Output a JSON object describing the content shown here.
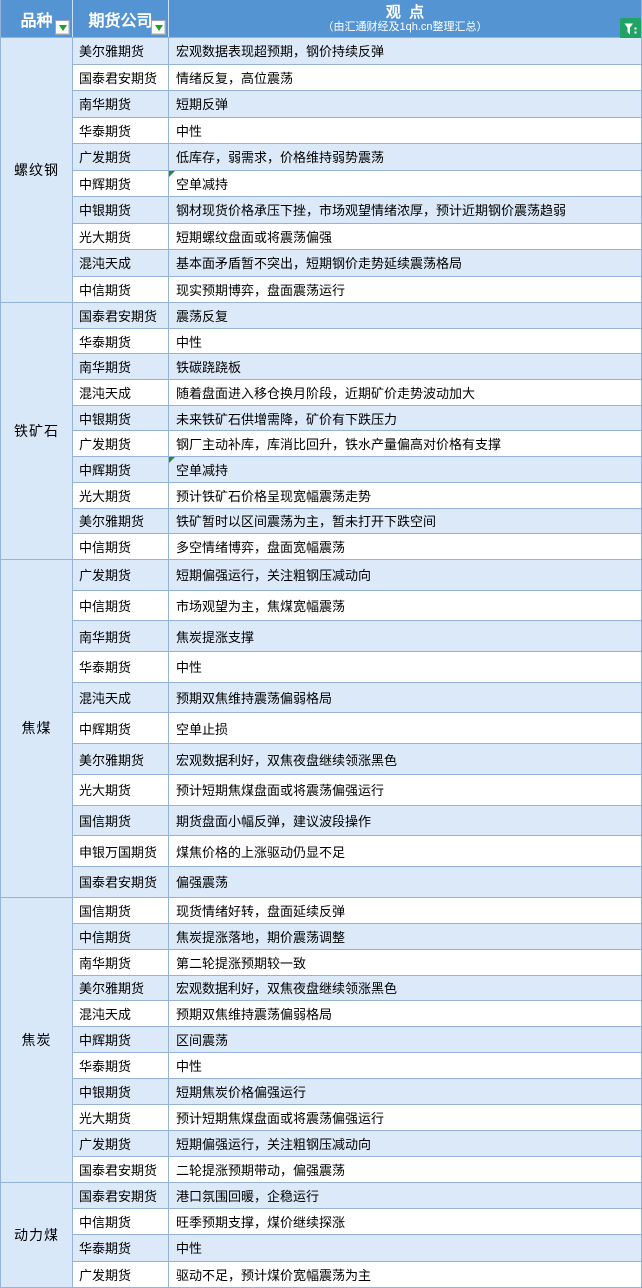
{
  "header": {
    "variety_label": "品种",
    "company_label": "期货公司",
    "view_title": "观  点",
    "view_subtitle": "（由汇通财经及1qh.cn整理汇总）"
  },
  "icons": {
    "variety_filter": "dropdown-arrow",
    "company_filter": "dropdown-arrow",
    "sheet_filter": "filter-funnel",
    "comment_marker": "corner-triangle"
  },
  "colors": {
    "header_bg": "#5494D2",
    "header_text": "#FFFFFF",
    "stripe_bg": "#DCE9F8",
    "variety_col_bg": "#D9E8F8",
    "grid_border": "#95B3D7",
    "dropdown_arrow_green": "#1FA21F",
    "filter_badge_green": "#21A366",
    "comment_marker_green": "#1E8E3E"
  },
  "sections": [
    {
      "variety": "螺纹钢",
      "rows": [
        {
          "company": "美尔雅期货",
          "view": "宏观数据表现超预期，钢价持续反弹"
        },
        {
          "company": "国泰君安期货",
          "view": "情绪反复，高位震荡"
        },
        {
          "company": "南华期货",
          "view": "短期反弹"
        },
        {
          "company": "华泰期货",
          "view": "中性"
        },
        {
          "company": "广发期货",
          "view": "低库存，弱需求，价格维持弱势震荡"
        },
        {
          "company": "中辉期货",
          "view": "空单减持",
          "comment": true
        },
        {
          "company": "中银期货",
          "view": "钢材现货价格承压下挫，市场观望情绪浓厚，预计近期钢价震荡趋弱"
        },
        {
          "company": "光大期货",
          "view": "短期螺纹盘面或将震荡偏强"
        },
        {
          "company": "混沌天成",
          "view": "基本面矛盾暂不突出，短期钢价走势延续震荡格局"
        },
        {
          "company": "中信期货",
          "view": "现实预期博弈，盘面震荡运行"
        }
      ]
    },
    {
      "variety": "铁矿石",
      "rows": [
        {
          "company": "国泰君安期货",
          "view": "震荡反复"
        },
        {
          "company": "华泰期货",
          "view": "中性"
        },
        {
          "company": "南华期货",
          "view": "铁碳跷跷板"
        },
        {
          "company": "混沌天成",
          "view": "随着盘面进入移仓换月阶段，近期矿价走势波动加大"
        },
        {
          "company": "中银期货",
          "view": "未来铁矿石供增需降，矿价有下跌压力"
        },
        {
          "company": "广发期货",
          "view": "钢厂主动补库，库消比回升，铁水产量偏高对价格有支撑"
        },
        {
          "company": "中辉期货",
          "view": "空单减持",
          "comment": true
        },
        {
          "company": "光大期货",
          "view": "预计铁矿石价格呈现宽幅震荡走势"
        },
        {
          "company": "美尔雅期货",
          "view": "铁矿暂时以区间震荡为主，暂未打开下跌空间"
        },
        {
          "company": "中信期货",
          "view": "多空情绪博弈，盘面宽幅震荡"
        }
      ]
    },
    {
      "variety": "焦煤",
      "rows": [
        {
          "company": "广发期货",
          "view": "短期偏强运行，关注粗钢压减动向"
        },
        {
          "company": "中信期货",
          "view": "市场观望为主，焦煤宽幅震荡"
        },
        {
          "company": "南华期货",
          "view": "焦炭提涨支撑"
        },
        {
          "company": "华泰期货",
          "view": "中性"
        },
        {
          "company": "混沌天成",
          "view": "预期双焦维持震荡偏弱格局"
        },
        {
          "company": "中辉期货",
          "view": "空单止损"
        },
        {
          "company": "美尔雅期货",
          "view": "宏观数据利好，双焦夜盘继续领涨黑色"
        },
        {
          "company": "光大期货",
          "view": "预计短期焦煤盘面或将震荡偏强运行"
        },
        {
          "company": "国信期货",
          "view": "期货盘面小幅反弹，建议波段操作"
        },
        {
          "company": "申银万国期货",
          "view": "煤焦价格的上涨驱动仍显不足"
        },
        {
          "company": "国泰君安期货",
          "view": "偏强震荡"
        }
      ]
    },
    {
      "variety": "焦炭",
      "rows": [
        {
          "company": "国信期货",
          "view": "现货情绪好转，盘面延续反弹"
        },
        {
          "company": "中信期货",
          "view": "焦炭提涨落地，期价震荡调整"
        },
        {
          "company": "南华期货",
          "view": "第二轮提涨预期较一致"
        },
        {
          "company": "美尔雅期货",
          "view": "宏观数据利好，双焦夜盘继续领涨黑色"
        },
        {
          "company": "混沌天成",
          "view": "预期双焦维持震荡偏弱格局"
        },
        {
          "company": "中辉期货",
          "view": "区间震荡"
        },
        {
          "company": "华泰期货",
          "view": "中性"
        },
        {
          "company": "中银期货",
          "view": "短期焦炭价格偏强运行"
        },
        {
          "company": "光大期货",
          "view": "预计短期焦煤盘面或将震荡偏强运行"
        },
        {
          "company": "广发期货",
          "view": "短期偏强运行，关注粗钢压减动向"
        },
        {
          "company": "国泰君安期货",
          "view": "二轮提涨预期带动，偏强震荡"
        }
      ]
    },
    {
      "variety": "动力煤",
      "rows": [
        {
          "company": "国泰君安期货",
          "view": "港口氛围回暖，企稳运行"
        },
        {
          "company": "中信期货",
          "view": "旺季预期支撑，煤价继续探涨"
        },
        {
          "company": "华泰期货",
          "view": "中性"
        },
        {
          "company": "广发期货",
          "view": "驱动不足，预计煤价宽幅震荡为主"
        }
      ]
    }
  ]
}
